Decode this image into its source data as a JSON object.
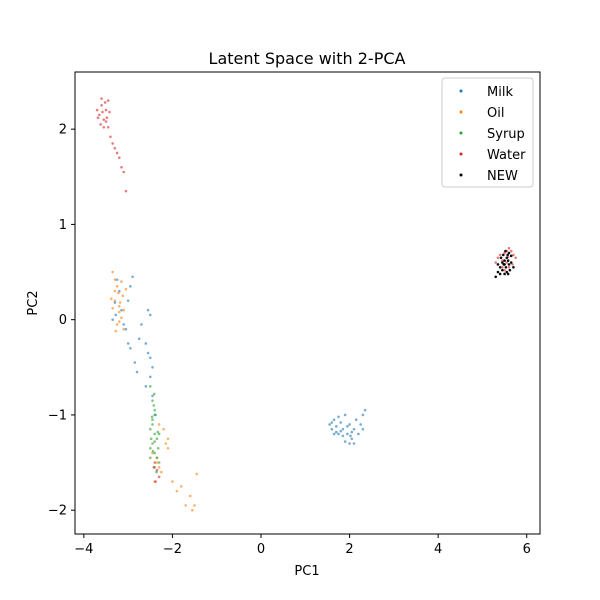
{
  "chart_data": {
    "type": "scatter",
    "title": "Latent Space with 2-PCA",
    "xlabel": "PC1",
    "ylabel": "PC2",
    "xlim": [
      -4.2,
      6.3
    ],
    "ylim": [
      -2.25,
      2.6
    ],
    "xticks": [
      -4,
      -2,
      0,
      2,
      4,
      6
    ],
    "yticks": [
      -2,
      -1,
      0,
      1,
      2
    ],
    "xtick_labels": [
      "−4",
      "−2",
      "0",
      "2",
      "4",
      "6"
    ],
    "ytick_labels": [
      "−2",
      "−1",
      "0",
      "1",
      "2"
    ],
    "grid": false,
    "legend_position": "top-right",
    "series": [
      {
        "name": "Milk",
        "color": "#1f77b4",
        "points": [
          [
            -3.25,
            0.42
          ],
          [
            -3.2,
            0.3
          ],
          [
            -3.3,
            0.18
          ],
          [
            -3.15,
            0.1
          ],
          [
            -3.28,
            0.05
          ],
          [
            -3.35,
            0.0
          ],
          [
            -3.1,
            -0.05
          ],
          [
            -3.0,
            0.2
          ],
          [
            -2.95,
            0.35
          ],
          [
            -2.9,
            0.45
          ],
          [
            -3.05,
            -0.1
          ],
          [
            -3.0,
            -0.25
          ],
          [
            -2.95,
            -0.3
          ],
          [
            -2.85,
            -0.45
          ],
          [
            -2.8,
            -0.55
          ],
          [
            -2.75,
            -0.2
          ],
          [
            -2.7,
            -0.05
          ],
          [
            -2.6,
            -0.25
          ],
          [
            -2.55,
            -0.35
          ],
          [
            -2.5,
            -0.4
          ],
          [
            -2.55,
            0.1
          ],
          [
            -2.5,
            0.05
          ],
          [
            -2.45,
            -0.5
          ],
          [
            -2.5,
            -0.6
          ],
          [
            -2.6,
            -0.7
          ],
          [
            -2.45,
            -0.8
          ],
          [
            -2.4,
            -1.0
          ],
          [
            1.55,
            -1.1
          ],
          [
            1.6,
            -1.15
          ],
          [
            1.65,
            -1.05
          ],
          [
            1.7,
            -1.12
          ],
          [
            1.75,
            -1.2
          ],
          [
            1.8,
            -1.08
          ],
          [
            1.85,
            -1.15
          ],
          [
            1.9,
            -1.0
          ],
          [
            1.95,
            -1.2
          ],
          [
            2.0,
            -1.1
          ],
          [
            2.05,
            -1.25
          ],
          [
            2.1,
            -1.15
          ],
          [
            2.15,
            -1.05
          ],
          [
            2.2,
            -1.2
          ],
          [
            2.25,
            -1.1
          ],
          [
            2.3,
            -1.0
          ],
          [
            2.35,
            -0.95
          ],
          [
            2.0,
            -1.3
          ],
          [
            1.9,
            -1.28
          ],
          [
            1.75,
            -1.02
          ],
          [
            1.7,
            -1.18
          ],
          [
            2.05,
            -1.18
          ],
          [
            1.95,
            -1.12
          ],
          [
            1.85,
            -1.22
          ],
          [
            1.65,
            -1.2
          ],
          [
            2.1,
            -1.3
          ],
          [
            2.3,
            -1.15
          ],
          [
            1.8,
            -1.17
          ],
          [
            1.6,
            -1.08
          ],
          [
            2.02,
            -1.22
          ]
        ]
      },
      {
        "name": "Oil",
        "color": "#ff7f0e",
        "points": [
          [
            -3.35,
            0.5
          ],
          [
            -3.3,
            0.42
          ],
          [
            -3.25,
            0.35
          ],
          [
            -3.22,
            0.28
          ],
          [
            -3.3,
            0.2
          ],
          [
            -3.35,
            0.12
          ],
          [
            -3.2,
            0.08
          ],
          [
            -3.15,
            0.02
          ],
          [
            -3.25,
            -0.05
          ],
          [
            -3.1,
            -0.1
          ],
          [
            -3.3,
            0.3
          ],
          [
            -3.18,
            0.18
          ],
          [
            -3.12,
            0.25
          ],
          [
            -3.05,
            0.32
          ],
          [
            -3.28,
            -0.12
          ],
          [
            -3.2,
            0.14
          ],
          [
            -3.15,
            0.4
          ],
          [
            -3.38,
            0.22
          ],
          [
            -3.2,
            -0.02
          ],
          [
            -3.1,
            0.1
          ],
          [
            -2.3,
            -1.1
          ],
          [
            -2.2,
            -1.15
          ],
          [
            -2.15,
            -1.3
          ],
          [
            -2.1,
            -1.25
          ],
          [
            -2.35,
            -1.45
          ],
          [
            -2.3,
            -1.55
          ],
          [
            -2.25,
            -1.6
          ],
          [
            -2.45,
            -1.4
          ],
          [
            -2.4,
            -1.7
          ],
          [
            -2.35,
            -1.5
          ],
          [
            -2.0,
            -1.7
          ],
          [
            -1.9,
            -1.8
          ],
          [
            -1.8,
            -1.75
          ],
          [
            -1.6,
            -1.85
          ],
          [
            -1.5,
            -1.95
          ],
          [
            -1.45,
            -1.62
          ],
          [
            -1.55,
            -2.0
          ],
          [
            -1.7,
            -1.95
          ],
          [
            -2.1,
            -1.35
          ]
        ]
      },
      {
        "name": "Syrup",
        "color": "#2ca02c",
        "points": [
          [
            -2.5,
            -0.7
          ],
          [
            -2.45,
            -0.85
          ],
          [
            -2.4,
            -0.95
          ],
          [
            -2.45,
            -1.05
          ],
          [
            -2.5,
            -1.15
          ],
          [
            -2.4,
            -1.2
          ],
          [
            -2.35,
            -1.25
          ],
          [
            -2.45,
            -1.3
          ],
          [
            -2.5,
            -1.35
          ],
          [
            -2.4,
            -1.4
          ],
          [
            -2.35,
            -1.45
          ],
          [
            -2.3,
            -1.5
          ],
          [
            -2.4,
            -1.55
          ],
          [
            -2.45,
            -1.1
          ],
          [
            -2.38,
            -1.0
          ],
          [
            -2.42,
            -0.9
          ],
          [
            -2.48,
            -1.25
          ],
          [
            -2.32,
            -1.35
          ],
          [
            -2.3,
            -1.2
          ],
          [
            -2.5,
            -1.45
          ],
          [
            -2.36,
            -1.6
          ],
          [
            -2.44,
            -1.38
          ],
          [
            -2.4,
            -1.28
          ],
          [
            -2.33,
            -1.18
          ],
          [
            -2.46,
            -1.02
          ],
          [
            -2.41,
            -0.78
          ]
        ]
      },
      {
        "name": "Water",
        "color": "#d62728",
        "points": [
          [
            -3.7,
            2.2
          ],
          [
            -3.65,
            2.15
          ],
          [
            -3.6,
            2.25
          ],
          [
            -3.55,
            2.1
          ],
          [
            -3.5,
            2.2
          ],
          [
            -3.45,
            2.3
          ],
          [
            -3.62,
            2.05
          ],
          [
            -3.58,
            2.18
          ],
          [
            -3.52,
            2.28
          ],
          [
            -3.48,
            2.12
          ],
          [
            -3.68,
            2.12
          ],
          [
            -3.55,
            2.02
          ],
          [
            -3.42,
            2.18
          ],
          [
            -3.6,
            2.32
          ],
          [
            -3.5,
            2.08
          ],
          [
            -3.45,
            2.02
          ],
          [
            -3.4,
            1.92
          ],
          [
            -3.35,
            1.85
          ],
          [
            -3.3,
            1.8
          ],
          [
            -3.25,
            1.75
          ],
          [
            -3.2,
            1.7
          ],
          [
            -3.15,
            1.6
          ],
          [
            -3.1,
            1.55
          ],
          [
            -3.05,
            1.35
          ],
          [
            -2.4,
            -1.5
          ],
          [
            -2.35,
            -1.58
          ],
          [
            -2.3,
            -1.65
          ],
          [
            -2.38,
            -1.7
          ],
          [
            -2.42,
            -1.55
          ],
          [
            5.3,
            0.6
          ],
          [
            5.35,
            0.65
          ],
          [
            5.4,
            0.68
          ],
          [
            5.45,
            0.62
          ],
          [
            5.5,
            0.7
          ],
          [
            5.55,
            0.72
          ],
          [
            5.6,
            0.75
          ],
          [
            5.65,
            0.72
          ],
          [
            5.7,
            0.68
          ],
          [
            5.75,
            0.65
          ],
          [
            5.45,
            0.55
          ],
          [
            5.55,
            0.6
          ],
          [
            5.5,
            0.52
          ],
          [
            5.6,
            0.55
          ],
          [
            5.68,
            0.58
          ],
          [
            5.58,
            0.66
          ]
        ]
      },
      {
        "name": "NEW",
        "color": "#000000",
        "points": [
          [
            5.3,
            0.45
          ],
          [
            5.35,
            0.5
          ],
          [
            5.4,
            0.55
          ],
          [
            5.45,
            0.6
          ],
          [
            5.5,
            0.62
          ],
          [
            5.55,
            0.65
          ],
          [
            5.6,
            0.7
          ],
          [
            5.65,
            0.6
          ],
          [
            5.7,
            0.55
          ],
          [
            5.55,
            0.5
          ],
          [
            5.5,
            0.48
          ],
          [
            5.45,
            0.52
          ],
          [
            5.6,
            0.58
          ],
          [
            5.52,
            0.72
          ],
          [
            5.58,
            0.62
          ],
          [
            5.42,
            0.65
          ],
          [
            5.48,
            0.58
          ],
          [
            5.62,
            0.52
          ],
          [
            5.4,
            0.48
          ],
          [
            5.53,
            0.55
          ],
          [
            5.57,
            0.68
          ],
          [
            5.47,
            0.68
          ],
          [
            5.65,
            0.67
          ],
          [
            5.35,
            0.58
          ],
          [
            5.5,
            0.58
          ],
          [
            5.58,
            0.48
          ]
        ]
      }
    ]
  }
}
